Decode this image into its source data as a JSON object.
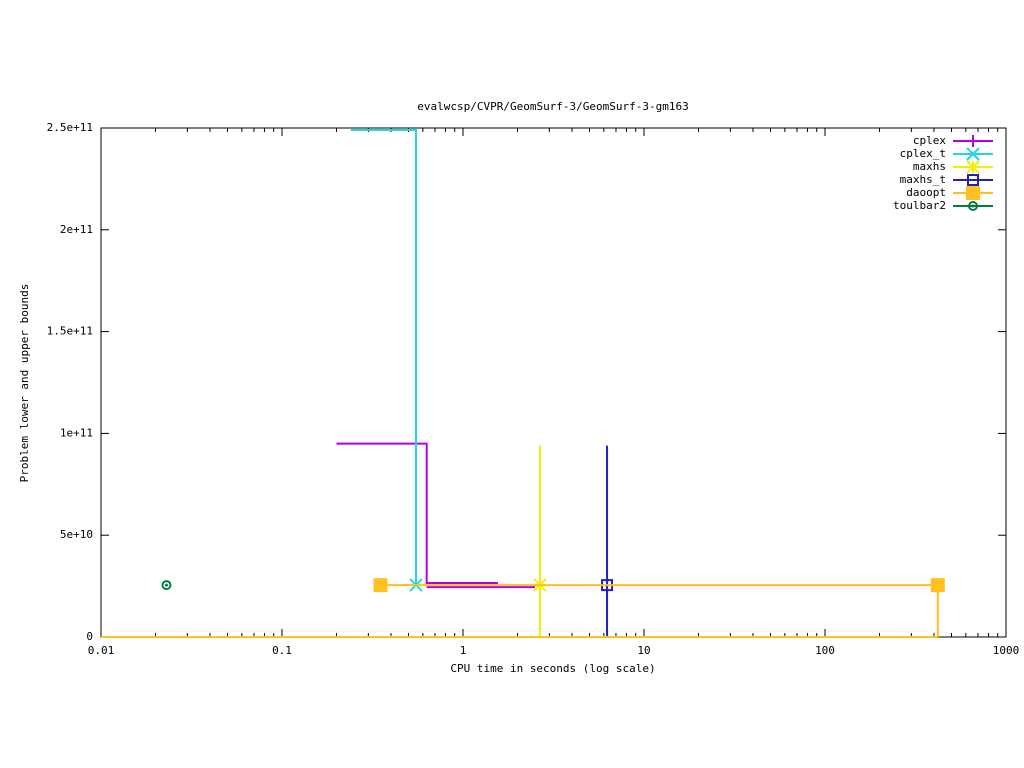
{
  "chart_data": {
    "type": "line",
    "title": "evalwcsp/CVPR/GeomSurf-3/GeomSurf-3-gm163",
    "x_label": "CPU time in seconds (log scale)",
    "y_label": "Problem lower and upper bounds",
    "x_log": true,
    "xlim": [
      0.01,
      1000
    ],
    "xticks": [
      0.01,
      0.1,
      1,
      10,
      100,
      1000
    ],
    "ylim": [
      0,
      250000000000
    ],
    "yticks": [
      0,
      {
        "value": 50000000000,
        "label": "5e+10"
      },
      {
        "value": 100000000000,
        "label": "1e+11"
      },
      {
        "value": 150000000000,
        "label": "1.5e+11"
      },
      {
        "value": 200000000000,
        "label": "2e+11"
      },
      {
        "value": 250000000000,
        "label": "2.5e+11"
      }
    ],
    "legend": "top-right",
    "series": [
      {
        "name": "cplex",
        "color": "#b000e8",
        "marker": "plus",
        "x": [
          0.2,
          0.63,
          0.63,
          1.56,
          null,
          0.63,
          2.5
        ],
        "values": [
          95000000000,
          95000000000,
          26500000000,
          26500000000,
          null,
          24500000000,
          24500000000
        ],
        "points": {
          "x": [],
          "values": []
        }
      },
      {
        "name": "cplex_t",
        "color": "#20d8e0",
        "marker": "x",
        "x": [
          0.24,
          0.55,
          0.55
        ],
        "values": [
          249000000000,
          249000000000,
          25500000000
        ],
        "points": {
          "x": [
            0.55
          ],
          "values": [
            25500000000
          ]
        }
      },
      {
        "name": "maxhs",
        "color": "#f0f000",
        "marker": "star",
        "x": [
          2.66,
          2.66
        ],
        "values": [
          94000000000,
          0
        ],
        "points": {
          "x": [
            2.66
          ],
          "values": [
            25500000000
          ]
        }
      },
      {
        "name": "maxhs_t",
        "color": "#2020c0",
        "marker": "square",
        "x": [
          6.25,
          6.25
        ],
        "values": [
          94000000000,
          0
        ],
        "points": {
          "x": [
            6.25
          ],
          "values": [
            25500000000
          ]
        }
      },
      {
        "name": "daoopt",
        "color": "#ffc020",
        "marker": "filled-square",
        "x": [
          0.35,
          420,
          420,
          null,
          0.01,
          420
        ],
        "values": [
          25500000000,
          25500000000,
          0,
          null,
          0,
          0
        ],
        "points": {
          "x": [
            0.35,
            420
          ],
          "values": [
            25500000000,
            25500000000
          ]
        }
      },
      {
        "name": "toulbar2",
        "color": "#008040",
        "marker": "circle",
        "x": [],
        "values": [],
        "points": {
          "x": [
            0.023
          ],
          "values": [
            25500000000
          ]
        }
      }
    ]
  }
}
